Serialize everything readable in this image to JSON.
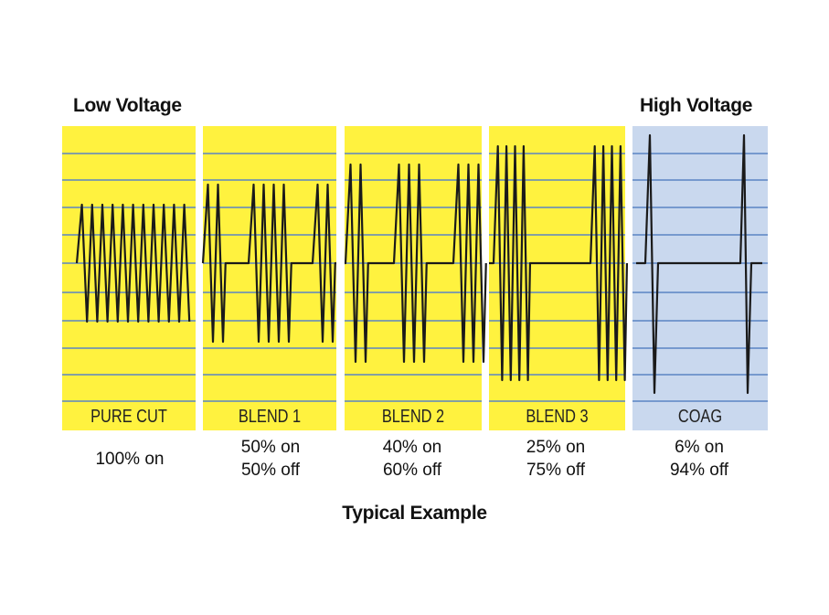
{
  "headers": {
    "left": "Low Voltage",
    "right": "High Voltage"
  },
  "colors": {
    "panel_yellow": "#fff23f",
    "panel_coag": "#c9d8ee",
    "grid_line": "#5b84c4",
    "waveform": "#1a1a1a"
  },
  "modes": [
    {
      "label": "PURE CUT",
      "on": "100% on",
      "off": "",
      "duty_on_percent": 100,
      "duty_off_percent": 0
    },
    {
      "label": "BLEND 1",
      "on": "50% on",
      "off": "50% off",
      "duty_on_percent": 50,
      "duty_off_percent": 50
    },
    {
      "label": "BLEND 2",
      "on": "40% on",
      "off": "60% off",
      "duty_on_percent": 40,
      "duty_off_percent": 60
    },
    {
      "label": "BLEND 3",
      "on": "25% on",
      "off": "75% off",
      "duty_on_percent": 25,
      "duty_off_percent": 75
    },
    {
      "label": "COAG",
      "on": "6% on",
      "off": "94% off",
      "duty_on_percent": 6,
      "duty_off_percent": 94
    }
  ],
  "caption": "Typical Example"
}
